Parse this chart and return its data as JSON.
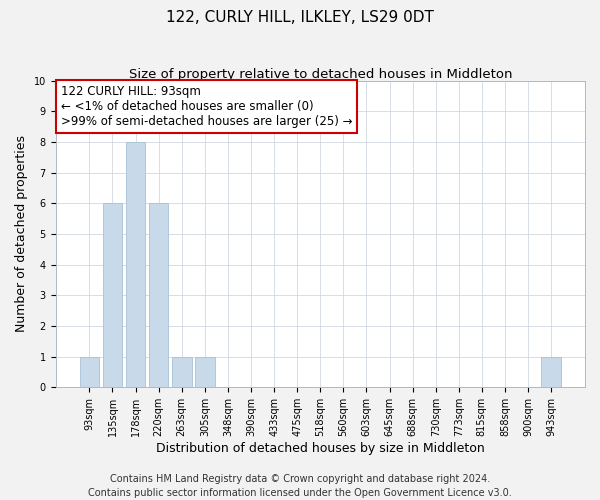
{
  "title": "122, CURLY HILL, ILKLEY, LS29 0DT",
  "subtitle": "Size of property relative to detached houses in Middleton",
  "xlabel": "Distribution of detached houses by size in Middleton",
  "ylabel": "Number of detached properties",
  "bar_color": "#c8daea",
  "bar_edge_color": "#a8c0d8",
  "categories": [
    "93sqm",
    "135sqm",
    "178sqm",
    "220sqm",
    "263sqm",
    "305sqm",
    "348sqm",
    "390sqm",
    "433sqm",
    "475sqm",
    "518sqm",
    "560sqm",
    "603sqm",
    "645sqm",
    "688sqm",
    "730sqm",
    "773sqm",
    "815sqm",
    "858sqm",
    "900sqm",
    "943sqm"
  ],
  "values": [
    1,
    6,
    8,
    6,
    1,
    1,
    0,
    0,
    0,
    0,
    0,
    0,
    0,
    0,
    0,
    0,
    0,
    0,
    0,
    0,
    1
  ],
  "ylim": [
    0,
    10
  ],
  "yticks": [
    0,
    1,
    2,
    3,
    4,
    5,
    6,
    7,
    8,
    9,
    10
  ],
  "annotation_title": "122 CURLY HILL: 93sqm",
  "annotation_line1": "← <1% of detached houses are smaller (0)",
  "annotation_line2": ">99% of semi-detached houses are larger (25) →",
  "annotation_box_color": "white",
  "annotation_box_edge_color": "#cc0000",
  "footer_line1": "Contains HM Land Registry data © Crown copyright and database right 2024.",
  "footer_line2": "Contains public sector information licensed under the Open Government Licence v3.0.",
  "background_color": "#f2f2f2",
  "plot_background_color": "white",
  "grid_color": "#d0d8e0",
  "title_fontsize": 11,
  "subtitle_fontsize": 9.5,
  "axis_label_fontsize": 9,
  "tick_fontsize": 7,
  "footer_fontsize": 7,
  "annotation_fontsize": 8.5
}
